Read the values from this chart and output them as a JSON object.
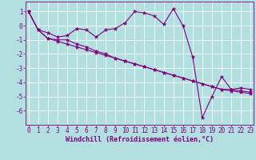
{
  "xlabel": "Windchill (Refroidissement éolien,°C)",
  "bg_color": "#b2e0e0",
  "grid_color": "#ffffff",
  "line_color": "#800080",
  "spine_color": "#800080",
  "x_ticks": [
    0,
    1,
    2,
    3,
    4,
    5,
    6,
    7,
    8,
    9,
    10,
    11,
    12,
    13,
    14,
    15,
    16,
    17,
    18,
    19,
    20,
    21,
    22,
    23
  ],
  "y_ticks": [
    -6,
    -5,
    -4,
    -3,
    -2,
    -1,
    0,
    1
  ],
  "ylim": [
    -7.0,
    1.7
  ],
  "xlim": [
    -0.3,
    23.3
  ],
  "series": [
    [
      1.0,
      -0.3,
      -0.5,
      -0.8,
      -0.7,
      -0.2,
      -0.3,
      -0.8,
      -0.3,
      -0.2,
      0.2,
      1.0,
      0.9,
      0.7,
      0.1,
      1.2,
      0.0,
      -2.2,
      -6.5,
      -5.0,
      -3.6,
      -4.5,
      -4.4,
      -4.5
    ],
    [
      1.0,
      -0.3,
      -0.9,
      -1.0,
      -1.0,
      -1.3,
      -1.5,
      -1.8,
      -2.0,
      -2.3,
      -2.5,
      -2.7,
      -2.9,
      -3.1,
      -3.3,
      -3.5,
      -3.7,
      -3.9,
      -4.1,
      -4.3,
      -4.5,
      -4.6,
      -4.7,
      -4.8
    ],
    [
      1.0,
      -0.3,
      -0.9,
      -1.1,
      -1.3,
      -1.5,
      -1.7,
      -1.9,
      -2.1,
      -2.3,
      -2.5,
      -2.7,
      -2.9,
      -3.1,
      -3.3,
      -3.5,
      -3.7,
      -3.9,
      -4.1,
      -4.3,
      -4.5,
      -4.5,
      -4.6,
      -4.7
    ]
  ],
  "tick_fontsize": 5.5,
  "xlabel_fontsize": 6.0,
  "marker_size": 3.5,
  "linewidth": 0.8
}
